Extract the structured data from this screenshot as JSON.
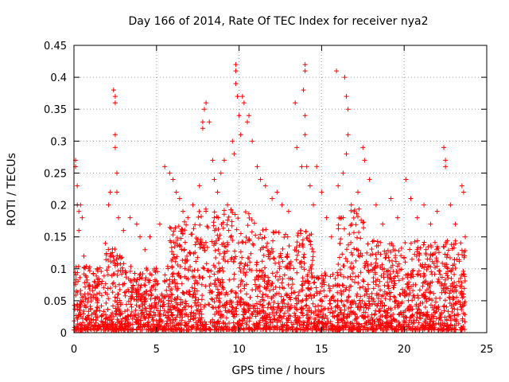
{
  "chart_data": {
    "type": "scatter",
    "title": "Day 166 of 2014, Rate Of TEC Index for receiver nya2",
    "xlabel": "GPS time / hours",
    "ylabel": "ROTI / TECUs",
    "xlim": [
      0,
      25
    ],
    "ylim": [
      0,
      0.45
    ],
    "xticks": [
      0,
      5,
      10,
      15,
      20,
      25
    ],
    "yticks": [
      0,
      0.05,
      0.1,
      0.15,
      0.2,
      0.25,
      0.3,
      0.35,
      0.4,
      0.45
    ],
    "xtick_labels": [
      "0",
      "5",
      "10",
      "15",
      "20",
      "25"
    ],
    "ytick_labels": [
      "0",
      "0.05",
      "0.1",
      "0.15",
      "0.2",
      "0.25",
      "0.3",
      "0.35",
      "0.4",
      "0.45"
    ],
    "grid": true,
    "marker": "+",
    "color": "#ff0000",
    "series": [
      {
        "name": "ROTI",
        "x_range_hours": [
          0,
          23.7
        ],
        "points": [
          [
            0.1,
            0.27
          ],
          [
            0.1,
            0.26
          ],
          [
            0.2,
            0.23
          ],
          [
            0.2,
            0.2
          ],
          [
            0.3,
            0.19
          ],
          [
            0.3,
            0.16
          ],
          [
            0.4,
            0.2
          ],
          [
            0.5,
            0.18
          ],
          [
            0.6,
            0.12
          ],
          [
            0.9,
            0.1
          ],
          [
            1.4,
            0.1
          ],
          [
            1.9,
            0.14
          ],
          [
            2.1,
            0.2
          ],
          [
            2.2,
            0.22
          ],
          [
            2.4,
            0.38
          ],
          [
            2.5,
            0.37
          ],
          [
            2.5,
            0.36
          ],
          [
            2.5,
            0.31
          ],
          [
            2.5,
            0.29
          ],
          [
            2.6,
            0.25
          ],
          [
            2.6,
            0.22
          ],
          [
            2.7,
            0.18
          ],
          [
            3.0,
            0.16
          ],
          [
            3.4,
            0.18
          ],
          [
            3.8,
            0.17
          ],
          [
            4.0,
            0.15
          ],
          [
            4.3,
            0.13
          ],
          [
            4.6,
            0.15
          ],
          [
            5.2,
            0.17
          ],
          [
            5.5,
            0.26
          ],
          [
            5.8,
            0.25
          ],
          [
            6.0,
            0.24
          ],
          [
            6.2,
            0.22
          ],
          [
            6.4,
            0.21
          ],
          [
            6.6,
            0.19
          ],
          [
            6.9,
            0.18
          ],
          [
            7.2,
            0.2
          ],
          [
            7.6,
            0.23
          ],
          [
            7.8,
            0.32
          ],
          [
            7.8,
            0.33
          ],
          [
            7.9,
            0.35
          ],
          [
            8.0,
            0.36
          ],
          [
            8.2,
            0.33
          ],
          [
            8.4,
            0.27
          ],
          [
            8.5,
            0.24
          ],
          [
            8.7,
            0.22
          ],
          [
            8.9,
            0.25
          ],
          [
            9.1,
            0.27
          ],
          [
            9.3,
            0.2
          ],
          [
            9.6,
            0.3
          ],
          [
            9.7,
            0.28
          ],
          [
            9.8,
            0.42
          ],
          [
            9.8,
            0.41
          ],
          [
            9.8,
            0.39
          ],
          [
            9.9,
            0.37
          ],
          [
            10.0,
            0.34
          ],
          [
            10.1,
            0.31
          ],
          [
            10.2,
            0.37
          ],
          [
            10.3,
            0.36
          ],
          [
            10.5,
            0.33
          ],
          [
            10.6,
            0.34
          ],
          [
            10.8,
            0.3
          ],
          [
            11.1,
            0.26
          ],
          [
            11.3,
            0.24
          ],
          [
            11.6,
            0.23
          ],
          [
            12.0,
            0.21
          ],
          [
            12.3,
            0.22
          ],
          [
            12.6,
            0.2
          ],
          [
            13.0,
            0.19
          ],
          [
            13.4,
            0.36
          ],
          [
            13.5,
            0.29
          ],
          [
            13.8,
            0.26
          ],
          [
            13.9,
            0.38
          ],
          [
            14.0,
            0.42
          ],
          [
            14.0,
            0.41
          ],
          [
            14.0,
            0.34
          ],
          [
            14.0,
            0.31
          ],
          [
            14.1,
            0.26
          ],
          [
            14.3,
            0.23
          ],
          [
            14.5,
            0.2
          ],
          [
            14.7,
            0.26
          ],
          [
            15.0,
            0.22
          ],
          [
            15.3,
            0.18
          ],
          [
            15.6,
            0.15
          ],
          [
            15.9,
            0.41
          ],
          [
            16.4,
            0.4
          ],
          [
            16.5,
            0.37
          ],
          [
            16.6,
            0.35
          ],
          [
            16.6,
            0.31
          ],
          [
            16.5,
            0.28
          ],
          [
            16.3,
            0.25
          ],
          [
            16.0,
            0.23
          ],
          [
            16.8,
            0.2
          ],
          [
            17.2,
            0.22
          ],
          [
            17.5,
            0.29
          ],
          [
            17.6,
            0.27
          ],
          [
            17.9,
            0.24
          ],
          [
            18.3,
            0.2
          ],
          [
            18.7,
            0.17
          ],
          [
            19.2,
            0.21
          ],
          [
            19.6,
            0.18
          ],
          [
            20.1,
            0.24
          ],
          [
            20.4,
            0.21
          ],
          [
            20.8,
            0.18
          ],
          [
            21.2,
            0.2
          ],
          [
            21.6,
            0.17
          ],
          [
            22.0,
            0.19
          ],
          [
            22.4,
            0.29
          ],
          [
            22.5,
            0.27
          ],
          [
            22.5,
            0.26
          ],
          [
            22.8,
            0.2
          ],
          [
            23.1,
            0.17
          ],
          [
            23.5,
            0.23
          ],
          [
            23.6,
            0.22
          ],
          [
            23.7,
            0.15
          ]
        ]
      }
    ]
  }
}
